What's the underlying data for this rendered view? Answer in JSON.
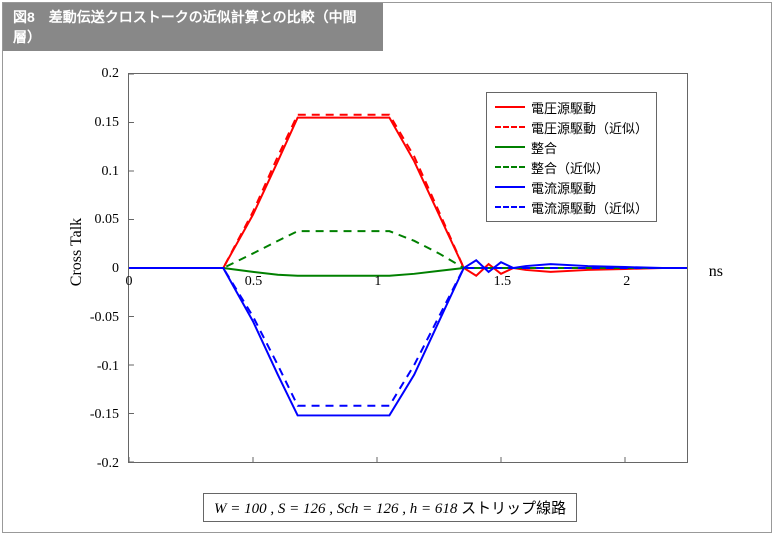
{
  "title": "図8　差動伝送クロストークの近似計算との比較（中間層）",
  "chart": {
    "type": "line",
    "xlim": [
      0,
      2.25
    ],
    "ylim": [
      -0.2,
      0.2
    ],
    "xticks": [
      0,
      0.5,
      1,
      1.5,
      2
    ],
    "yticks": [
      -0.2,
      -0.15,
      -0.1,
      -0.05,
      0,
      0.05,
      0.1,
      0.15,
      0.2
    ],
    "ylabel": "Cross Talk",
    "xunit": "ns",
    "background_color": "#ffffff",
    "border_color": "#666666",
    "tick_fontsize": 14,
    "label_fontsize": 16,
    "series": [
      {
        "name": "電圧源駆動",
        "color": "#ff0000",
        "dash": "none",
        "width": 2,
        "x": [
          0,
          0.1,
          0.2,
          0.3,
          0.38,
          0.5,
          0.6,
          0.68,
          0.8,
          0.95,
          1.05,
          1.15,
          1.25,
          1.35,
          1.4,
          1.45,
          1.5,
          1.55,
          1.6,
          1.7,
          1.85,
          2.0,
          2.15,
          2.25
        ],
        "y": [
          0,
          0,
          0,
          0,
          0,
          0.055,
          0.11,
          0.155,
          0.155,
          0.155,
          0.155,
          0.11,
          0.055,
          0,
          -0.008,
          0.004,
          -0.006,
          0,
          -0.002,
          -0.004,
          -0.002,
          -0.001,
          0,
          0
        ]
      },
      {
        "name": "電圧源駆動（近似）",
        "color": "#ff0000",
        "dash": "8,6",
        "width": 2,
        "x": [
          0,
          0.1,
          0.2,
          0.3,
          0.38,
          0.5,
          0.6,
          0.68,
          0.8,
          0.95,
          1.05,
          1.15,
          1.25,
          1.35,
          1.45,
          1.55,
          1.7,
          1.85,
          2.0,
          2.15,
          2.25
        ],
        "y": [
          0,
          0,
          0,
          0,
          0,
          0.058,
          0.115,
          0.158,
          0.158,
          0.158,
          0.158,
          0.115,
          0.058,
          0,
          0,
          0,
          0,
          0,
          0,
          0,
          0
        ]
      },
      {
        "name": "整合",
        "color": "#008000",
        "dash": "none",
        "width": 2,
        "x": [
          0,
          0.1,
          0.2,
          0.3,
          0.38,
          0.5,
          0.6,
          0.68,
          0.8,
          0.95,
          1.05,
          1.15,
          1.25,
          1.35,
          1.45,
          1.55,
          1.7,
          1.85,
          2.0,
          2.15,
          2.25
        ],
        "y": [
          0,
          0,
          0,
          0,
          0,
          -0.004,
          -0.007,
          -0.008,
          -0.008,
          -0.008,
          -0.008,
          -0.006,
          -0.003,
          0,
          0,
          0,
          0,
          0,
          0,
          0,
          0
        ]
      },
      {
        "name": "整合（近似）",
        "color": "#008000",
        "dash": "8,6",
        "width": 2,
        "x": [
          0,
          0.1,
          0.2,
          0.3,
          0.38,
          0.5,
          0.6,
          0.68,
          0.8,
          0.95,
          1.05,
          1.15,
          1.25,
          1.35,
          1.45,
          1.55,
          1.7,
          1.85,
          2.0,
          2.15,
          2.25
        ],
        "y": [
          0,
          0,
          0,
          0,
          0,
          0.015,
          0.028,
          0.038,
          0.038,
          0.038,
          0.038,
          0.028,
          0.015,
          0,
          0,
          0,
          0,
          0,
          0,
          0,
          0
        ]
      },
      {
        "name": "電流源駆動",
        "color": "#0000ff",
        "dash": "none",
        "width": 2,
        "x": [
          0,
          0.1,
          0.2,
          0.3,
          0.38,
          0.5,
          0.6,
          0.68,
          0.8,
          0.95,
          1.05,
          1.15,
          1.25,
          1.35,
          1.4,
          1.45,
          1.5,
          1.55,
          1.6,
          1.7,
          1.85,
          2.0,
          2.15,
          2.25
        ],
        "y": [
          0,
          0,
          0,
          0,
          0,
          -0.055,
          -0.11,
          -0.152,
          -0.152,
          -0.152,
          -0.152,
          -0.11,
          -0.055,
          0,
          0.008,
          -0.004,
          0.006,
          0,
          0.002,
          0.004,
          0.002,
          0.001,
          0,
          0
        ]
      },
      {
        "name": "電流源駆動（近似）",
        "color": "#0000ff",
        "dash": "8,6",
        "width": 2,
        "x": [
          0,
          0.1,
          0.2,
          0.3,
          0.38,
          0.5,
          0.6,
          0.68,
          0.8,
          0.95,
          1.05,
          1.15,
          1.25,
          1.35,
          1.45,
          1.55,
          1.7,
          1.85,
          2.0,
          2.15,
          2.25
        ],
        "y": [
          0,
          0,
          0,
          0,
          0,
          -0.05,
          -0.1,
          -0.142,
          -0.142,
          -0.142,
          -0.142,
          -0.1,
          -0.05,
          0,
          0,
          0,
          0,
          0,
          0,
          0,
          0
        ]
      }
    ]
  },
  "caption_parts": {
    "params": "W = 100 , S = 126 , Sch = 126 , h = 618",
    "suffix": "  ストリップ線路"
  },
  "colors": {
    "title_bg": "#888888",
    "title_fg": "#ffffff"
  }
}
